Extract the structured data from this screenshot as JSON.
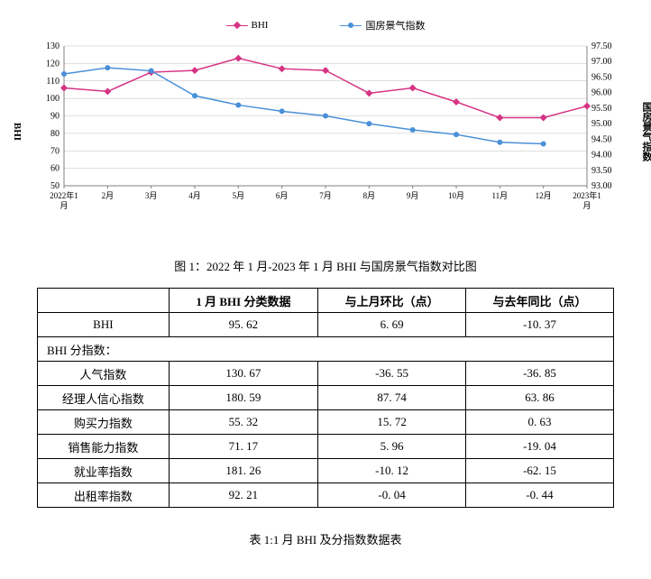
{
  "chart": {
    "type": "dual-axis-line",
    "legend": {
      "series1": "BHI",
      "series2": "国房景气指数"
    },
    "colors": {
      "bhi": "#d63384",
      "housing": "#4a90d9",
      "grid": "#bfbfbf",
      "axis": "#808080",
      "text": "#000000",
      "background": "#ffffff"
    },
    "x_labels": [
      "2022年1月",
      "2月",
      "3月",
      "4月",
      "5月",
      "6月",
      "7月",
      "8月",
      "9月",
      "10月",
      "11月",
      "12月",
      "2023年1月"
    ],
    "left_axis": {
      "label": "BHI",
      "min": 50,
      "max": 130,
      "ticks": [
        50,
        60,
        70,
        80,
        90,
        100,
        110,
        120,
        130
      ]
    },
    "right_axis": {
      "label": "国房景气指数",
      "min": 93.0,
      "max": 97.5,
      "ticks": [
        93.0,
        93.5,
        94.0,
        94.5,
        95.0,
        95.5,
        96.0,
        96.5,
        97.0,
        97.5
      ]
    },
    "bhi_values": [
      106,
      104,
      115,
      116,
      123,
      117,
      116,
      103,
      106,
      98,
      89,
      89,
      95.62
    ],
    "housing_values": [
      96.6,
      96.8,
      96.7,
      95.9,
      95.6,
      95.4,
      95.25,
      95.0,
      94.8,
      94.65,
      94.4,
      94.35,
      null
    ],
    "marker": {
      "bhi_shape": "diamond",
      "housing_shape": "circle",
      "size": 4
    },
    "line_width": 1.5,
    "font_size_ticks": 10,
    "font_size_legend": 11
  },
  "figure_caption": "图 1：2022 年 1 月-2023 年 1 月 BHI 与国房景气指数对比图",
  "table": {
    "headers": [
      "",
      "1 月 BHI 分类数据",
      "与上月环比（点）",
      "与去年同比（点）"
    ],
    "rows": [
      {
        "label": "BHI",
        "v1": "95. 62",
        "v2": "6. 69",
        "v3": "-10. 37"
      },
      {
        "subheader": "BHI 分指数："
      },
      {
        "label": "人气指数",
        "v1": "130. 67",
        "v2": "-36. 55",
        "v3": "-36. 85"
      },
      {
        "label": "经理人信心指数",
        "v1": "180. 59",
        "v2": "87. 74",
        "v3": "63. 86"
      },
      {
        "label": "购买力指数",
        "v1": "55. 32",
        "v2": "15. 72",
        "v3": "0. 63"
      },
      {
        "label": "销售能力指数",
        "v1": "71. 17",
        "v2": "5. 96",
        "v3": "-19. 04"
      },
      {
        "label": "就业率指数",
        "v1": "181. 26",
        "v2": "-10. 12",
        "v3": "-62. 15"
      },
      {
        "label": "出租率指数",
        "v1": "92. 21",
        "v2": "-0. 04",
        "v3": "-0. 44"
      }
    ]
  },
  "table_caption": "表 1:1 月 BHI 及分指数数据表"
}
